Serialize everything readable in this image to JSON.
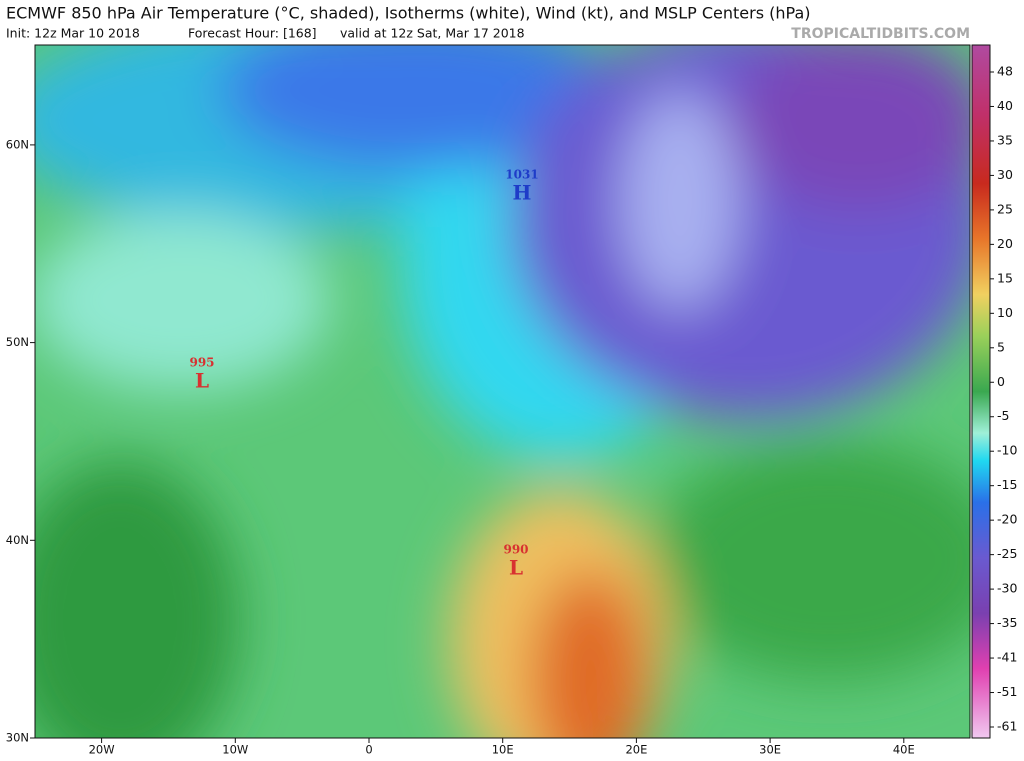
{
  "header": {
    "title": "ECMWF 850 hPa Air Temperature (°C, shaded), Isotherms (white), Wind (kt), and MSLP Centers (hPa)",
    "init": "Init: 12z Mar 10 2018",
    "forecast_hour": "Forecast Hour: [168]",
    "valid": "valid at 12z Sat, Mar 17 2018",
    "source": "TROPICALTIDBITS.COM"
  },
  "map": {
    "lat_ticks": [
      {
        "value": 60,
        "label": "60N"
      },
      {
        "value": 50,
        "label": "50N"
      },
      {
        "value": 40,
        "label": "40N"
      },
      {
        "value": 30,
        "label": "30N"
      }
    ],
    "lon_ticks": [
      {
        "value": -20,
        "label": "20W"
      },
      {
        "value": -10,
        "label": "10W"
      },
      0,
      {
        "value": 10,
        "label": "10E"
      },
      {
        "value": 20,
        "label": "20E"
      },
      {
        "value": 30,
        "label": "30E"
      },
      {
        "value": 40,
        "label": "40E"
      }
    ],
    "pressure_centers": [
      {
        "symbol": "H",
        "pressure": 1031
      },
      {
        "symbol": "L",
        "pressure": 995
      },
      {
        "symbol": "L",
        "pressure": 990
      }
    ]
  },
  "colorbar": {
    "labels": [
      48,
      40,
      35,
      30,
      25,
      20,
      15,
      10,
      5,
      0,
      -5,
      -10,
      -15,
      -20,
      -25,
      -30,
      -35,
      -41,
      -51,
      -61
    ]
  }
}
